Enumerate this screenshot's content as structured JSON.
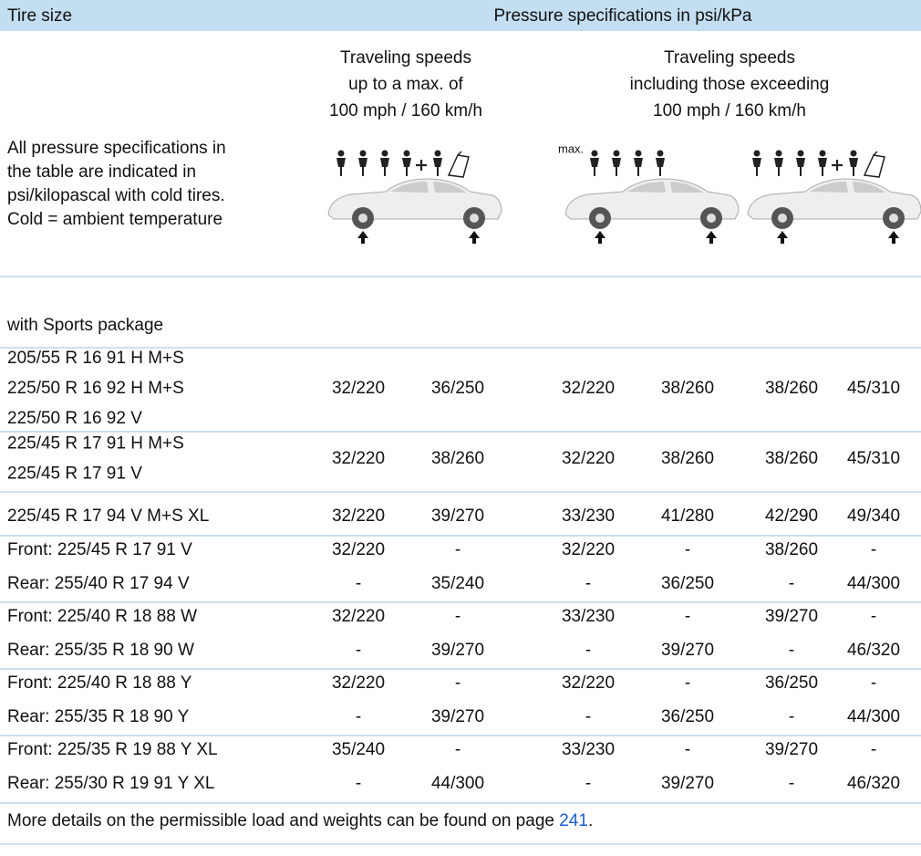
{
  "header": {
    "tire_size": "Tire size",
    "pressure": "Pressure specifications in psi/kPa"
  },
  "groups": [
    {
      "lines": [
        "Traveling speeds",
        "up to a max. of",
        "100 mph / 160 km/h"
      ]
    },
    {
      "lines": [
        "Traveling speeds",
        "including those exceeding",
        "100 mph / 160 km/h"
      ]
    }
  ],
  "note": [
    "All pressure specifications in",
    "the table are indicated in",
    "psi/kilopascal with cold tires.",
    "Cold = ambient temperature"
  ],
  "icon_label": "max.",
  "section": "with Sports package",
  "rows": [
    {
      "tire": [
        "205/55 R 16 91 H M+S",
        "225/50 R 16 92 H M+S",
        "225/50 R 16 92 V"
      ],
      "values": [
        "32/220",
        "36/250",
        "32/220",
        "38/260",
        "38/260",
        "45/310"
      ]
    },
    {
      "tire": [
        "225/45 R 17 91 H M+S",
        "225/45 R 17 91 V"
      ],
      "values": [
        "32/220",
        "38/260",
        "32/220",
        "38/260",
        "38/260",
        "45/310"
      ]
    },
    {
      "tire": [
        "225/45 R 17 94 V M+S XL"
      ],
      "values": [
        "32/220",
        "39/270",
        "33/230",
        "41/280",
        "42/290",
        "49/340"
      ]
    },
    {
      "tire": [
        "Front: 225/45 R 17 91 V"
      ],
      "values": [
        "32/220",
        "-",
        "32/220",
        "-",
        "38/260",
        "-"
      ]
    },
    {
      "tire": [
        "Rear: 255/40 R 17 94 V"
      ],
      "values": [
        "-",
        "35/240",
        "-",
        "36/250",
        "-",
        "44/300"
      ]
    },
    {
      "tire": [
        "Front: 225/40 R 18 88 W"
      ],
      "values": [
        "32/220",
        "-",
        "33/230",
        "-",
        "39/270",
        "-"
      ]
    },
    {
      "tire": [
        "Rear: 255/35 R 18 90 W"
      ],
      "values": [
        "-",
        "39/270",
        "-",
        "39/270",
        "-",
        "46/320"
      ]
    },
    {
      "tire": [
        "Front: 225/40 R 18 88 Y"
      ],
      "values": [
        "32/220",
        "-",
        "32/220",
        "-",
        "36/250",
        "-"
      ]
    },
    {
      "tire": [
        "Rear: 255/35 R 18 90 Y"
      ],
      "values": [
        "-",
        "39/270",
        "-",
        "36/250",
        "-",
        "44/300"
      ]
    },
    {
      "tire": [
        "Front: 225/35 R 19 88 Y XL"
      ],
      "values": [
        "35/240",
        "-",
        "33/230",
        "-",
        "39/270",
        "-"
      ]
    },
    {
      "tire": [
        "Rear: 255/30 R 19 91 Y XL"
      ],
      "values": [
        "-",
        "44/300",
        "-",
        "39/270",
        "-",
        "46/320"
      ]
    }
  ],
  "footer": {
    "text": "More details on the permissible load and weights can be found on page ",
    "link": "241",
    "end": "."
  }
}
